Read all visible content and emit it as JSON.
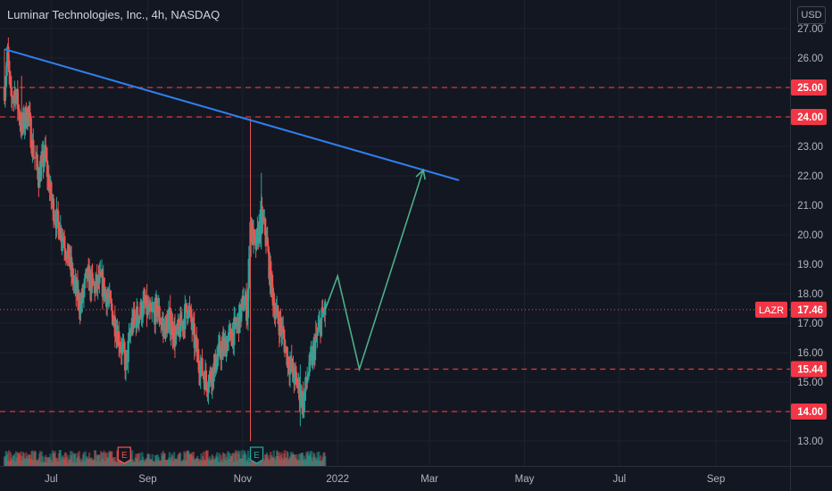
{
  "header": {
    "title": "Luminar Technologies, Inc., 4h, NASDAQ",
    "currency": "USD"
  },
  "colors": {
    "background": "#131722",
    "grid": "#1e222d",
    "axis_text": "#b2b5be",
    "up_candle": "#26a69a",
    "down_candle": "#ef5350",
    "trendline": "#2f80ed",
    "projection": "#4caf88",
    "level_line": "#e03a3a",
    "price_label_bg": "#f23645"
  },
  "chart_data": {
    "type": "candlestick",
    "symbol": "LAZR",
    "timeframe": "4h",
    "y_axis": {
      "ticks": [
        27.0,
        26.0,
        25.0,
        24.0,
        23.0,
        22.0,
        21.0,
        20.0,
        19.0,
        18.0,
        17.0,
        16.0,
        15.0,
        14.0,
        13.0
      ],
      "tick_labels": [
        "27.00",
        "26.00",
        "25.00",
        "24.00",
        "23.00",
        "22.00",
        "21.00",
        "20.00",
        "19.00",
        "18.00",
        "17.00",
        "16.00",
        "15.00",
        "14.00",
        "13.00"
      ],
      "range": [
        12.2,
        27.6
      ]
    },
    "x_axis": {
      "tick_labels": [
        "Jul",
        "Sep",
        "Nov",
        "2022",
        "Mar",
        "May",
        "Jul",
        "Sep"
      ],
      "tick_dates": [
        "2021-07-01",
        "2021-09-01",
        "2021-11-01",
        "2022-01-01",
        "2022-03-01",
        "2022-05-01",
        "2022-07-01",
        "2022-09-01"
      ],
      "range": [
        "2021-06-01",
        "2022-10-10"
      ]
    },
    "price_path": [
      [
        "2021-06-01",
        25.0
      ],
      [
        "2021-06-03",
        26.1
      ],
      [
        "2021-06-05",
        24.6
      ],
      [
        "2021-06-08",
        24.9
      ],
      [
        "2021-06-12",
        23.6
      ],
      [
        "2021-06-16",
        24.2
      ],
      [
        "2021-06-19",
        23.0
      ],
      [
        "2021-06-23",
        22.0
      ],
      [
        "2021-06-27",
        22.7
      ],
      [
        "2021-07-01",
        21.2
      ],
      [
        "2021-07-05",
        20.4
      ],
      [
        "2021-07-09",
        19.9
      ],
      [
        "2021-07-13",
        19.0
      ],
      [
        "2021-07-16",
        18.2
      ],
      [
        "2021-07-20",
        17.6
      ],
      [
        "2021-07-24",
        18.6
      ],
      [
        "2021-07-28",
        18.2
      ],
      [
        "2021-08-02",
        18.4
      ],
      [
        "2021-08-06",
        17.9
      ],
      [
        "2021-08-10",
        17.2
      ],
      [
        "2021-08-14",
        16.4
      ],
      [
        "2021-08-18",
        15.6
      ],
      [
        "2021-08-22",
        17.0
      ],
      [
        "2021-08-26",
        17.3
      ],
      [
        "2021-08-30",
        17.6
      ],
      [
        "2021-09-03",
        17.2
      ],
      [
        "2021-09-07",
        17.5
      ],
      [
        "2021-09-11",
        16.8
      ],
      [
        "2021-09-15",
        17.1
      ],
      [
        "2021-09-19",
        16.5
      ],
      [
        "2021-09-23",
        17.0
      ],
      [
        "2021-09-27",
        17.6
      ],
      [
        "2021-10-01",
        16.4
      ],
      [
        "2021-10-05",
        15.5
      ],
      [
        "2021-10-09",
        15.0
      ],
      [
        "2021-10-13",
        15.4
      ],
      [
        "2021-10-17",
        16.0
      ],
      [
        "2021-10-21",
        16.3
      ],
      [
        "2021-10-25",
        16.6
      ],
      [
        "2021-10-29",
        17.0
      ],
      [
        "2021-11-02",
        17.8
      ],
      [
        "2021-11-04",
        17.4
      ],
      [
        "2021-11-06",
        20.4
      ],
      [
        "2021-11-09",
        19.5
      ],
      [
        "2021-11-13",
        20.6
      ],
      [
        "2021-11-16",
        20.0
      ],
      [
        "2021-11-19",
        18.4
      ],
      [
        "2021-11-22",
        17.4
      ],
      [
        "2021-11-26",
        16.8
      ],
      [
        "2021-11-30",
        15.8
      ],
      [
        "2021-12-04",
        15.2
      ],
      [
        "2021-12-07",
        14.8
      ],
      [
        "2021-12-10",
        14.3
      ],
      [
        "2021-12-13",
        15.3
      ],
      [
        "2021-12-16",
        15.9
      ],
      [
        "2021-12-19",
        16.6
      ],
      [
        "2021-12-22",
        17.2
      ],
      [
        "2021-12-24",
        17.46
      ]
    ],
    "last_price": 17.46,
    "last_price_label": "17.46",
    "series_label": "LAZR",
    "horizontal_levels": [
      {
        "value": 25.0,
        "label": "25.00"
      },
      {
        "value": 24.0,
        "label": "24.00"
      },
      {
        "value": 15.44,
        "label": "15.44"
      },
      {
        "value": 14.0,
        "label": "14.00"
      }
    ],
    "trendline": {
      "start": [
        "2021-06-01",
        26.3
      ],
      "end": [
        "2022-03-20",
        21.85
      ]
    },
    "projection_path": [
      [
        "2021-12-24",
        17.46
      ],
      [
        "2022-01-01",
        18.6
      ],
      [
        "2022-01-15",
        15.44
      ],
      [
        "2022-02-25",
        22.2
      ]
    ],
    "earnings_markers": [
      {
        "date": "2021-08-17",
        "label": "E",
        "color": "#ef5350"
      },
      {
        "date": "2021-11-10",
        "label": "E",
        "color": "#26a69a"
      }
    ],
    "grid": true
  }
}
